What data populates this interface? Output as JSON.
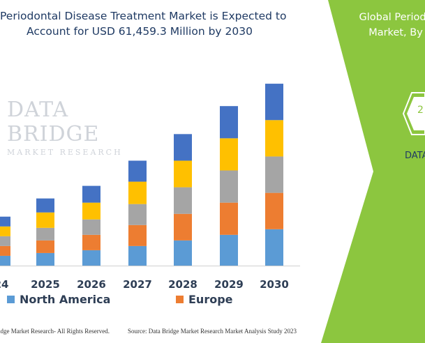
{
  "chart_data": {
    "type": "bar",
    "stacked": true,
    "title_lines": [
      "Periodontal Disease Treatment Market is Expected to",
      "Account for USD 61,459.3 Million by 2030"
    ],
    "categories": [
      "24",
      "2025",
      "2026",
      "2027",
      "2028",
      "2029",
      "2030"
    ],
    "series": [
      {
        "name": "North America",
        "color": "#5b9bd5",
        "values": [
          7,
          9,
          11,
          14,
          18,
          22,
          26
        ]
      },
      {
        "name": "Europe",
        "color": "#ed7d31",
        "values": [
          7,
          9,
          11,
          15,
          19,
          23,
          26
        ]
      },
      {
        "name": "",
        "color": "#a5a5a5",
        "values": [
          7,
          9,
          11,
          15,
          19,
          23,
          26
        ]
      },
      {
        "name": "",
        "color": "#ffc000",
        "values": [
          7,
          11,
          12,
          16,
          19,
          23,
          26
        ]
      },
      {
        "name": "",
        "color": "#4472c4",
        "values": [
          7,
          10,
          12,
          15,
          19,
          23,
          26
        ]
      }
    ],
    "ylim": [
      0,
      140
    ],
    "grid": false,
    "legend_position": "bottom"
  },
  "watermark": {
    "main": "DATA BRIDGE",
    "sub": "MARKET RESEARCH"
  },
  "footer": {
    "left": "idge Market Research- All Rights Reserved.",
    "right": "Source: Data Bridge Market Research Market Analysis Study 2023"
  },
  "side_panel": {
    "title_lines": [
      "Global Periodo",
      "Market, By"
    ],
    "hex_value": "2",
    "brand": "DATA",
    "color": "#8cc63f"
  }
}
